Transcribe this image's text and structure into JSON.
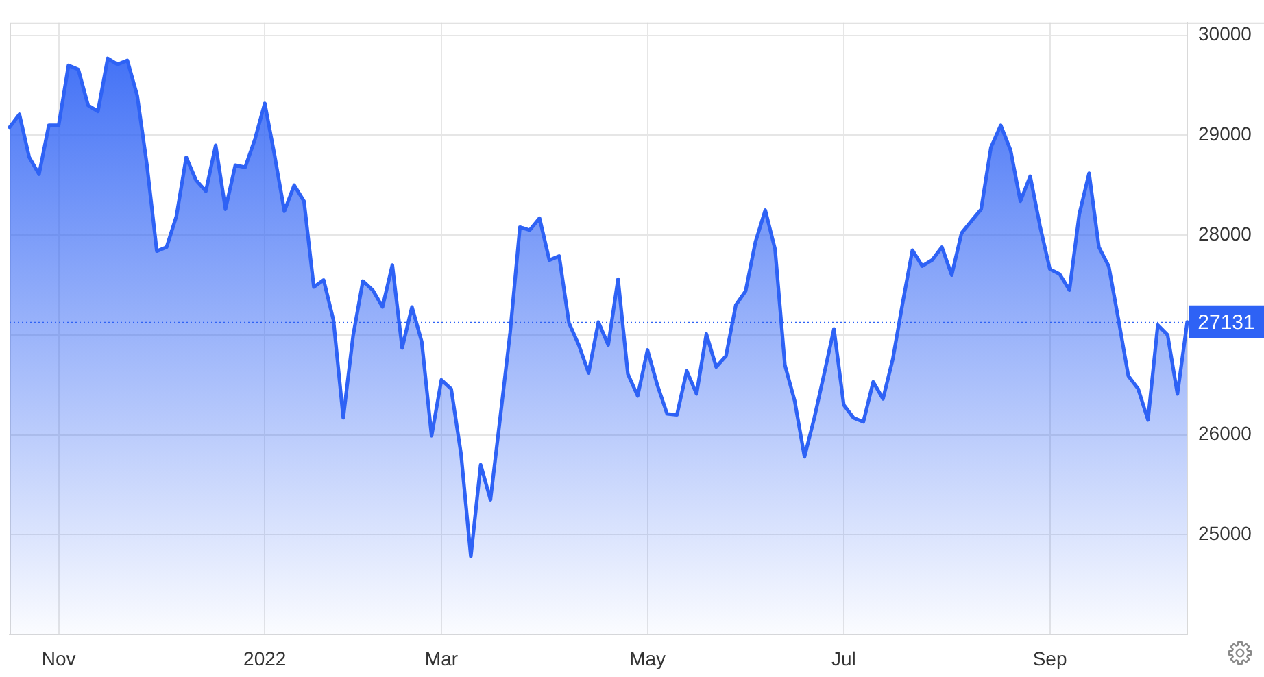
{
  "chart_data": {
    "type": "area",
    "categories": [
      null,
      null,
      null,
      null,
      null,
      "Nov",
      null,
      null,
      null,
      null,
      null,
      null,
      null,
      null,
      null,
      null,
      null,
      null,
      null,
      null,
      null,
      null,
      null,
      null,
      null,
      null,
      "2022",
      null,
      null,
      null,
      null,
      null,
      null,
      null,
      null,
      null,
      null,
      null,
      null,
      null,
      null,
      null,
      null,
      null,
      "Mar",
      null,
      null,
      null,
      null,
      null,
      null,
      null,
      null,
      null,
      null,
      null,
      null,
      null,
      null,
      null,
      null,
      null,
      null,
      null,
      null,
      "May",
      null,
      null,
      null,
      null,
      null,
      null,
      null,
      null,
      null,
      null,
      null,
      null,
      null,
      null,
      null,
      null,
      null,
      null,
      null,
      "Jul",
      null,
      null,
      null,
      null,
      null,
      null,
      null,
      null,
      null,
      null,
      null,
      null,
      null,
      null,
      null,
      null,
      null,
      null,
      null,
      null,
      "Sep",
      null,
      null,
      null,
      null,
      null,
      null,
      null,
      null,
      null,
      null,
      null,
      null,
      null,
      null
    ],
    "values": [
      29080,
      29210,
      28780,
      28610,
      29100,
      29100,
      29700,
      29660,
      29300,
      29240,
      29770,
      29710,
      29750,
      29400,
      28700,
      27840,
      27880,
      28190,
      28780,
      28550,
      28440,
      28900,
      28260,
      28700,
      28680,
      28960,
      29320,
      28800,
      28240,
      28500,
      28340,
      27480,
      27550,
      27150,
      26170,
      26990,
      27540,
      27450,
      27280,
      27700,
      26870,
      27280,
      26930,
      25990,
      26550,
      26460,
      25810,
      24780,
      25700,
      25350,
      26180,
      27020,
      28080,
      28050,
      28170,
      27750,
      27790,
      27120,
      26900,
      26620,
      27130,
      26900,
      27560,
      26610,
      26390,
      26850,
      26500,
      26210,
      26200,
      26640,
      26410,
      27010,
      26680,
      26790,
      27300,
      27440,
      27930,
      28250,
      27860,
      26700,
      26340,
      25780,
      26170,
      26610,
      27060,
      26300,
      26170,
      26130,
      26530,
      26360,
      26760,
      27320,
      27850,
      27690,
      27750,
      27880,
      27600,
      28020,
      28140,
      28260,
      28880,
      29100,
      28850,
      28340,
      28590,
      28090,
      27660,
      27610,
      27450,
      28210,
      28620,
      27880,
      27690,
      27150,
      26590,
      26460,
      26150,
      27100,
      27000,
      26410,
      27131
    ],
    "color": "#2e62f5",
    "ylim": [
      24000,
      30130
    ],
    "yticks": [
      25000,
      26000,
      {
        "value": 27000,
        "label": null
      },
      28000,
      29000,
      30000
    ],
    "grid": true,
    "ref_lines": [
      {
        "axis": "y",
        "value": 27131,
        "label": "27131",
        "color": "#2e62f5",
        "line_style": "dotted"
      }
    ]
  }
}
